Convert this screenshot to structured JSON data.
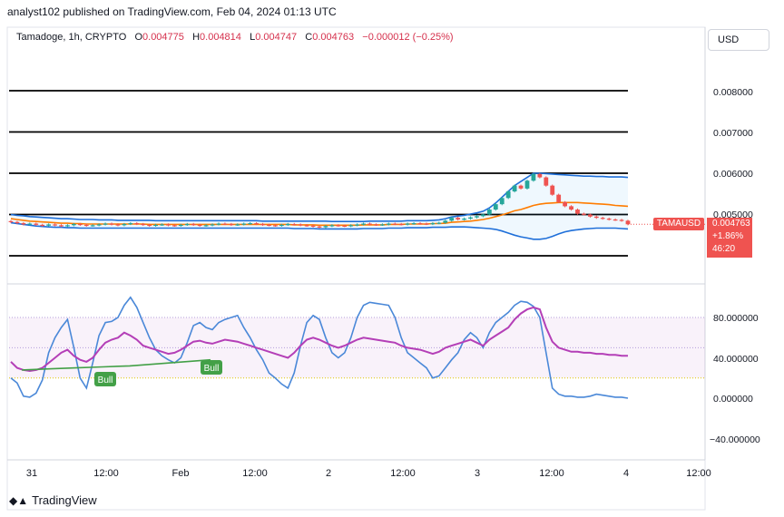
{
  "header": {
    "publisher": "analyst102 published on TradingView.com, Feb 04, 2024 01:13 UTC"
  },
  "symbol_line": {
    "name": "Tamadoge, 1h, CRYPTO",
    "o_label": "O",
    "o": "0.004775",
    "h_label": "H",
    "h": "0.004814",
    "l_label": "L",
    "l": "0.004747",
    "c_label": "C",
    "c": "0.004763",
    "change": "−0.000012 (−0.25%)"
  },
  "currency_button": "USD",
  "price_axis_ticks": [
    "0.008000",
    "0.007000",
    "0.006000",
    "0.005000"
  ],
  "stoch_axis_ticks": [
    "80.000000",
    "40.000000",
    "0.000000",
    "−40.000000"
  ],
  "time_axis_ticks": [
    "31",
    "12:00",
    "Feb",
    "12:00",
    "2",
    "12:00",
    "3",
    "12:00",
    "4",
    "12:00"
  ],
  "price_tag": "TAMAUSD",
  "last_price": {
    "price": "0.004763",
    "change": "+1.86%",
    "countdown": "46:20"
  },
  "bull_labels": [
    "Bull",
    "Bull"
  ],
  "footer": {
    "brand": "TradingView"
  },
  "colors": {
    "up": "#26a69a",
    "down": "#ef5350",
    "bb_band": "#1e6fd9",
    "bb_basis": "#ff7c00",
    "stoch_k": "#4a88d8",
    "rsi": "#b43fb7",
    "divergence": "#43a047",
    "neutral_text": "#131722"
  },
  "chart_data": [
    {
      "type": "candlestick",
      "title": "Tamadoge, 1h, CRYPTO",
      "ylabel": "USD",
      "ylim": [
        0.004,
        0.0088
      ],
      "yticks": [
        0.008,
        0.007,
        0.006,
        0.005
      ],
      "x_ticks": [
        "31",
        "12:00",
        "Feb",
        "12:00",
        "2",
        "12:00",
        "3",
        "12:00",
        "4",
        "12:00"
      ],
      "horizontal_levels": [
        0.008,
        0.007,
        0.006,
        0.005,
        0.004
      ],
      "close": [
        0.00482,
        0.00479,
        0.00476,
        0.00478,
        0.00475,
        0.00473,
        0.00476,
        0.00474,
        0.00472,
        0.00474,
        0.00477,
        0.00475,
        0.00473,
        0.00474,
        0.00476,
        0.00478,
        0.00476,
        0.00474,
        0.00477,
        0.00479,
        0.00477,
        0.00475,
        0.00473,
        0.00475,
        0.00476,
        0.00474,
        0.00473,
        0.00475,
        0.00477,
        0.00475,
        0.00473,
        0.00474,
        0.00476,
        0.00478,
        0.00477,
        0.00475,
        0.00476,
        0.00478,
        0.00479,
        0.00477,
        0.00475,
        0.00474,
        0.00473,
        0.00475,
        0.00477,
        0.00476,
        0.00474,
        0.00473,
        0.00471,
        0.00469,
        0.00472,
        0.00474,
        0.00473,
        0.00472,
        0.00474,
        0.00476,
        0.00478,
        0.00476,
        0.00475,
        0.00476,
        0.00478,
        0.00477,
        0.00476,
        0.00478,
        0.00479,
        0.00478,
        0.00477,
        0.00479,
        0.0048,
        0.00485,
        0.00492,
        0.00488,
        0.0049,
        0.00493,
        0.00496,
        0.005,
        0.00512,
        0.00525,
        0.0054,
        0.00556,
        0.0057,
        0.00563,
        0.00582,
        0.00598,
        0.0059,
        0.0057,
        0.00548,
        0.0053,
        0.0052,
        0.00512,
        0.00502,
        0.005,
        0.00495,
        0.00492,
        0.0049,
        0.00488,
        0.00487,
        0.00485,
        0.004763
      ],
      "bb_upper": [
        0.005,
        0.00498,
        0.00497,
        0.00495,
        0.00494,
        0.00493,
        0.00492,
        0.00491,
        0.0049,
        0.0049,
        0.00489,
        0.00488,
        0.00488,
        0.00488,
        0.00487,
        0.00487,
        0.00487,
        0.00486,
        0.00486,
        0.00486,
        0.00486,
        0.00486,
        0.00486,
        0.00485,
        0.00485,
        0.00485,
        0.00485,
        0.00485,
        0.00485,
        0.00485,
        0.00485,
        0.00485,
        0.00485,
        0.00485,
        0.00485,
        0.00485,
        0.00485,
        0.00485,
        0.00485,
        0.00485,
        0.00484,
        0.00484,
        0.00484,
        0.00484,
        0.00484,
        0.00484,
        0.00484,
        0.00484,
        0.00484,
        0.00484,
        0.00484,
        0.00483,
        0.00483,
        0.00483,
        0.00483,
        0.00483,
        0.00483,
        0.00484,
        0.00484,
        0.00484,
        0.00484,
        0.00484,
        0.00484,
        0.00485,
        0.00485,
        0.00485,
        0.00485,
        0.00486,
        0.00487,
        0.0049,
        0.00494,
        0.00496,
        0.00498,
        0.00501,
        0.00504,
        0.00508,
        0.00516,
        0.00528,
        0.00542,
        0.00556,
        0.0057,
        0.0058,
        0.0059,
        0.006,
        0.006,
        0.00599,
        0.00598,
        0.00597,
        0.00596,
        0.00595,
        0.00594,
        0.00593,
        0.00593,
        0.00592,
        0.00592,
        0.00591,
        0.00591,
        0.00591,
        0.0059
      ],
      "bb_basis": [
        0.0049,
        0.00488,
        0.00486,
        0.00484,
        0.00483,
        0.00482,
        0.00481,
        0.0048,
        0.00479,
        0.00479,
        0.00478,
        0.00478,
        0.00477,
        0.00477,
        0.00477,
        0.00477,
        0.00477,
        0.00477,
        0.00477,
        0.00477,
        0.00477,
        0.00477,
        0.00476,
        0.00476,
        0.00476,
        0.00476,
        0.00476,
        0.00476,
        0.00476,
        0.00476,
        0.00476,
        0.00476,
        0.00476,
        0.00476,
        0.00476,
        0.00476,
        0.00476,
        0.00476,
        0.00476,
        0.00476,
        0.00476,
        0.00476,
        0.00476,
        0.00476,
        0.00476,
        0.00475,
        0.00475,
        0.00475,
        0.00475,
        0.00474,
        0.00474,
        0.00474,
        0.00474,
        0.00474,
        0.00474,
        0.00474,
        0.00475,
        0.00475,
        0.00475,
        0.00475,
        0.00476,
        0.00476,
        0.00476,
        0.00477,
        0.00477,
        0.00477,
        0.00477,
        0.00478,
        0.00478,
        0.00479,
        0.00481,
        0.00482,
        0.00483,
        0.00484,
        0.00486,
        0.00488,
        0.00491,
        0.00495,
        0.00499,
        0.00504,
        0.00509,
        0.00512,
        0.00517,
        0.00522,
        0.00525,
        0.00527,
        0.00528,
        0.00529,
        0.00529,
        0.00529,
        0.00529,
        0.00528,
        0.00527,
        0.00526,
        0.00525,
        0.00524,
        0.00522,
        0.00521,
        0.0052
      ],
      "bb_lower": [
        0.0048,
        0.00478,
        0.00476,
        0.00474,
        0.00472,
        0.00471,
        0.0047,
        0.00469,
        0.00469,
        0.00468,
        0.00468,
        0.00467,
        0.00467,
        0.00467,
        0.00467,
        0.00467,
        0.00467,
        0.00467,
        0.00467,
        0.00467,
        0.00467,
        0.00467,
        0.00467,
        0.00467,
        0.00467,
        0.00467,
        0.00467,
        0.00467,
        0.00467,
        0.00467,
        0.00467,
        0.00467,
        0.00467,
        0.00467,
        0.00467,
        0.00467,
        0.00467,
        0.00467,
        0.00467,
        0.00467,
        0.00467,
        0.00467,
        0.00467,
        0.00467,
        0.00467,
        0.00466,
        0.00466,
        0.00466,
        0.00466,
        0.00465,
        0.00465,
        0.00465,
        0.00465,
        0.00465,
        0.00465,
        0.00465,
        0.00466,
        0.00466,
        0.00466,
        0.00466,
        0.00467,
        0.00467,
        0.00467,
        0.00468,
        0.00468,
        0.00468,
        0.00468,
        0.00469,
        0.00469,
        0.00469,
        0.0047,
        0.0047,
        0.0047,
        0.00469,
        0.00468,
        0.00467,
        0.00466,
        0.00464,
        0.0046,
        0.00455,
        0.0045,
        0.00446,
        0.00443,
        0.0044,
        0.0044,
        0.00442,
        0.00447,
        0.00453,
        0.00458,
        0.00461,
        0.00463,
        0.00465,
        0.00466,
        0.00467,
        0.00467,
        0.00467,
        0.00467,
        0.00466,
        0.00465
      ]
    },
    {
      "type": "line",
      "title": "",
      "ylim": [
        -55,
        110
      ],
      "yticks": [
        80,
        40,
        0,
        -40
      ],
      "bands": {
        "upper": 80,
        "middle": 50,
        "lower": 20
      },
      "series": [
        {
          "values": [
            20,
            15,
            2,
            1,
            5,
            18,
            45,
            60,
            70,
            78,
            50,
            20,
            10,
            35,
            62,
            75,
            76,
            80,
            92,
            100,
            90,
            75,
            60,
            48,
            42,
            38,
            35,
            40,
            55,
            72,
            75,
            70,
            68,
            75,
            78,
            80,
            82,
            70,
            60,
            48,
            38,
            25,
            20,
            14,
            10,
            25,
            52,
            75,
            82,
            78,
            60,
            45,
            40,
            45,
            60,
            80,
            92,
            95,
            94,
            93,
            92,
            80,
            60,
            45,
            40,
            35,
            30,
            20,
            22,
            30,
            38,
            45,
            58,
            65,
            60,
            50,
            65,
            75,
            80,
            85,
            92,
            96,
            95,
            91,
            80,
            45,
            10,
            4,
            2,
            2,
            1,
            1,
            2,
            4,
            3,
            2,
            1,
            1,
            0
          ]
        },
        {
          "values": [
            36,
            30,
            28,
            27,
            28,
            30,
            35,
            40,
            45,
            48,
            42,
            38,
            36,
            40,
            48,
            55,
            58,
            60,
            65,
            62,
            58,
            52,
            50,
            48,
            46,
            44,
            45,
            48,
            52,
            56,
            57,
            55,
            54,
            56,
            58,
            57,
            56,
            54,
            52,
            50,
            48,
            46,
            44,
            42,
            40,
            45,
            52,
            58,
            60,
            58,
            55,
            52,
            50,
            52,
            55,
            58,
            60,
            59,
            58,
            57,
            56,
            55,
            52,
            50,
            49,
            48,
            46,
            44,
            46,
            50,
            52,
            54,
            56,
            58,
            55,
            52,
            58,
            62,
            66,
            70,
            78,
            84,
            88,
            90,
            88,
            70,
            56,
            50,
            48,
            46,
            46,
            45,
            45,
            44,
            44,
            43,
            43,
            42,
            42
          ]
        },
        {
          "values": [
            28,
            29,
            30,
            31,
            32,
            34,
            36,
            38
          ]
        }
      ]
    }
  ]
}
